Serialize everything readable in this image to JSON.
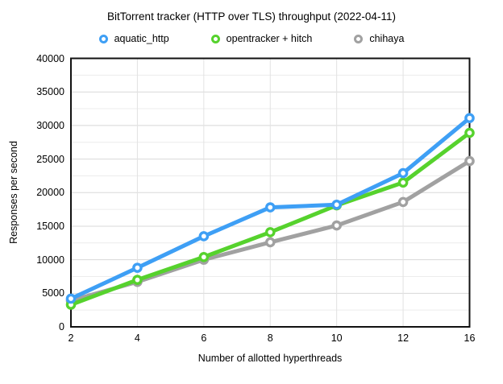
{
  "title": "BitTorrent tracker (HTTP over TLS) throughput (2022-04-11)",
  "axes": {
    "x_title": "Number of allotted hyperthreads",
    "y_title": "Responses per second",
    "y_tick_labels": [
      "0",
      "5000",
      "10000",
      "15000",
      "20000",
      "25000",
      "30000",
      "35000",
      "40000"
    ],
    "x_tick_labels": [
      "2",
      "4",
      "6",
      "8",
      "10",
      "12",
      "16"
    ]
  },
  "chart_data": {
    "type": "line",
    "title": "BitTorrent tracker (HTTP over TLS) throughput (2022-04-11)",
    "xlabel": "Number of allotted hyperthreads",
    "ylabel": "Responses per second",
    "categories": [
      2,
      4,
      6,
      8,
      10,
      12,
      16
    ],
    "ylim": [
      0,
      40000
    ],
    "ytick_step": 5000,
    "minor_step": 2500,
    "grid": true,
    "legend_position": "top",
    "marker": "open-circle",
    "series": [
      {
        "name": "aquatic_http",
        "color": "#3E9FF5",
        "values": [
          4200,
          8800,
          13500,
          17800,
          18200,
          22900,
          31100
        ]
      },
      {
        "name": "opentracker + hitch",
        "color": "#56D22D",
        "values": [
          3300,
          7000,
          10400,
          14100,
          18100,
          21500,
          28900
        ]
      },
      {
        "name": "chihaya",
        "color": "#A1A1A1",
        "values": [
          3900,
          6700,
          10000,
          12600,
          15100,
          18600,
          24700
        ]
      }
    ],
    "colors": {
      "grid_major": "#d8d8d8",
      "grid_minor": "#ececec",
      "grid_vertical": "#e2e2e2",
      "border": "#111111",
      "background": "#ffffff"
    }
  }
}
